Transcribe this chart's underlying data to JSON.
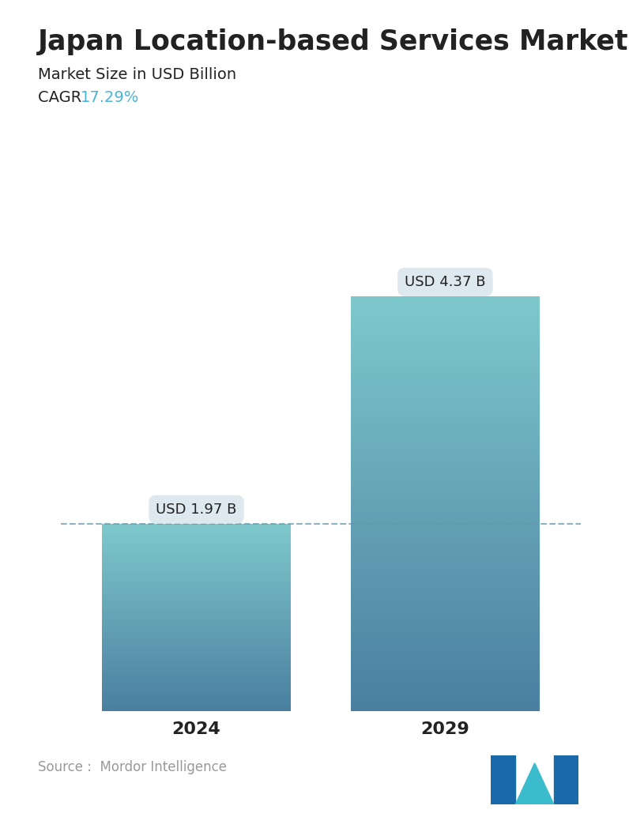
{
  "title": "Japan Location-based Services Market",
  "subtitle": "Market Size in USD Billion",
  "cagr_label": "CAGR ",
  "cagr_value": "17.29%",
  "cagr_color": "#4ab5d5",
  "categories": [
    "2024",
    "2029"
  ],
  "values": [
    1.97,
    4.37
  ],
  "bar_labels": [
    "USD 1.97 B",
    "USD 4.37 B"
  ],
  "ylim": [
    0,
    5.0
  ],
  "bar_top_color": [
    "#7ec8cc",
    "#7ec8cc"
  ],
  "bar_bottom_color": [
    "#4a7fa0",
    "#4a7fa0"
  ],
  "dashed_line_color": "#6699aa",
  "dashed_line_y": 1.97,
  "source_text": "Source :  Mordor Intelligence",
  "title_fontsize": 25,
  "subtitle_fontsize": 14,
  "cagr_fontsize": 14,
  "label_fontsize": 13,
  "xtick_fontsize": 16,
  "source_fontsize": 12,
  "background_color": "#ffffff",
  "text_color": "#222222",
  "source_color": "#999999",
  "callout_bg": "#dde9ef",
  "bar_positions": [
    0.27,
    0.73
  ],
  "bar_width": 0.35
}
